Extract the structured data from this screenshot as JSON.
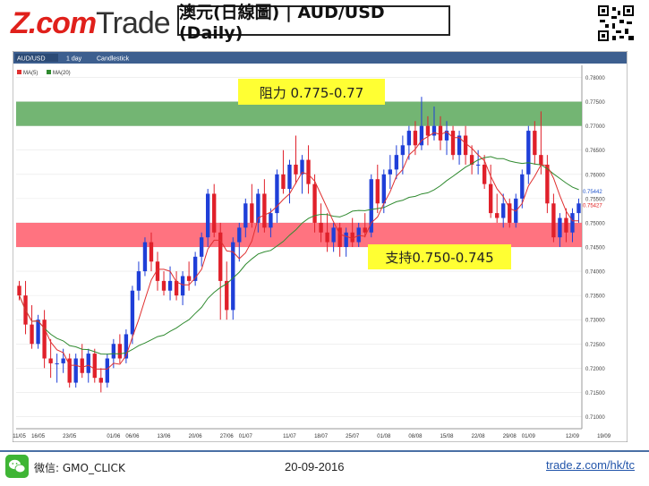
{
  "header": {
    "logo_z": "Z.com",
    "logo_trade": "Trade",
    "title": "澳元(日線圖) | AUD/USD  (Daily)"
  },
  "toolbar": {
    "symbol": "AUD/USD",
    "period": "1 day",
    "style": "Candlestick",
    "legend_ma5": "MA(5)",
    "legend_ma20": "MA(20)"
  },
  "annotations": {
    "resistance": "阻力 0.775-0.77",
    "support": "支持0.750-0.745"
  },
  "footer": {
    "wechat": "微信: GMO_CLICK",
    "date": "20-09-2016",
    "site": "trade.z.com/hk/tc"
  },
  "colors": {
    "up": "#1f3fd8",
    "down": "#e0202a",
    "ma5": "#e03030",
    "ma20": "#2f8a2f",
    "resistance_band": "#5aa85a",
    "support_band": "#ff5a6a",
    "label_bg": "#ffff33"
  },
  "chart_data": {
    "type": "candlestick",
    "ylim": [
      0.7075,
      0.7825
    ],
    "yticks": [
      "0.78000",
      "0.77500",
      "0.77000",
      "0.76500",
      "0.76000",
      "0.75500",
      "0.75000",
      "0.74500",
      "0.74000",
      "0.73500",
      "0.73000",
      "0.72500",
      "0.72000",
      "0.71500",
      "0.71000"
    ],
    "xticks": [
      "11/05",
      "16/05",
      "23/05",
      "01/06",
      "06/06",
      "13/06",
      "20/06",
      "27/06",
      "01/07",
      "11/07",
      "18/07",
      "25/07",
      "01/08",
      "08/08",
      "15/08",
      "22/08",
      "29/08",
      "01/09",
      "12/09",
      "19/09"
    ],
    "xtick_index": [
      0,
      3,
      8,
      15,
      18,
      23,
      28,
      33,
      36,
      43,
      48,
      53,
      58,
      63,
      68,
      73,
      78,
      81,
      88,
      93
    ],
    "bands": [
      {
        "from": 0.77,
        "to": 0.775,
        "label": "resistance"
      },
      {
        "from": 0.745,
        "to": 0.75,
        "label": "support"
      }
    ],
    "last_values": [
      "0.75442",
      "0.75427"
    ],
    "candles": [
      [
        0.737,
        0.738,
        0.734,
        0.735
      ],
      [
        0.735,
        0.738,
        0.727,
        0.729
      ],
      [
        0.729,
        0.733,
        0.724,
        0.725
      ],
      [
        0.725,
        0.731,
        0.724,
        0.73
      ],
      [
        0.73,
        0.732,
        0.72,
        0.722
      ],
      [
        0.722,
        0.726,
        0.718,
        0.721
      ],
      [
        0.721,
        0.723,
        0.717,
        0.721
      ],
      [
        0.721,
        0.724,
        0.719,
        0.722
      ],
      [
        0.722,
        0.723,
        0.716,
        0.717
      ],
      [
        0.717,
        0.723,
        0.716,
        0.722
      ],
      [
        0.722,
        0.725,
        0.718,
        0.719
      ],
      [
        0.719,
        0.724,
        0.717,
        0.723
      ],
      [
        0.723,
        0.724,
        0.717,
        0.718
      ],
      [
        0.718,
        0.72,
        0.715,
        0.717
      ],
      [
        0.717,
        0.723,
        0.716,
        0.722
      ],
      [
        0.722,
        0.726,
        0.72,
        0.725
      ],
      [
        0.725,
        0.727,
        0.721,
        0.722
      ],
      [
        0.722,
        0.728,
        0.721,
        0.727
      ],
      [
        0.727,
        0.737,
        0.725,
        0.736
      ],
      [
        0.736,
        0.742,
        0.734,
        0.74
      ],
      [
        0.74,
        0.747,
        0.739,
        0.746
      ],
      [
        0.746,
        0.748,
        0.74,
        0.742
      ],
      [
        0.742,
        0.744,
        0.736,
        0.738
      ],
      [
        0.738,
        0.74,
        0.735,
        0.736
      ],
      [
        0.736,
        0.741,
        0.734,
        0.738
      ],
      [
        0.738,
        0.74,
        0.734,
        0.735
      ],
      [
        0.735,
        0.74,
        0.733,
        0.739
      ],
      [
        0.739,
        0.742,
        0.736,
        0.738
      ],
      [
        0.738,
        0.744,
        0.737,
        0.743
      ],
      [
        0.743,
        0.748,
        0.741,
        0.747
      ],
      [
        0.747,
        0.757,
        0.745,
        0.756
      ],
      [
        0.756,
        0.758,
        0.747,
        0.748
      ],
      [
        0.748,
        0.75,
        0.73,
        0.738
      ],
      [
        0.738,
        0.742,
        0.73,
        0.732
      ],
      [
        0.732,
        0.747,
        0.73,
        0.746
      ],
      [
        0.746,
        0.75,
        0.742,
        0.749
      ],
      [
        0.749,
        0.755,
        0.747,
        0.754
      ],
      [
        0.754,
        0.758,
        0.749,
        0.75
      ],
      [
        0.75,
        0.757,
        0.748,
        0.756
      ],
      [
        0.756,
        0.759,
        0.748,
        0.749
      ],
      [
        0.749,
        0.753,
        0.747,
        0.752
      ],
      [
        0.752,
        0.761,
        0.75,
        0.76
      ],
      [
        0.76,
        0.765,
        0.756,
        0.757
      ],
      [
        0.757,
        0.763,
        0.754,
        0.762
      ],
      [
        0.762,
        0.768,
        0.758,
        0.76
      ],
      [
        0.76,
        0.764,
        0.756,
        0.763
      ],
      [
        0.763,
        0.766,
        0.756,
        0.758
      ],
      [
        0.758,
        0.76,
        0.748,
        0.75
      ],
      [
        0.75,
        0.754,
        0.746,
        0.748
      ],
      [
        0.748,
        0.752,
        0.744,
        0.746
      ],
      [
        0.746,
        0.75,
        0.744,
        0.749
      ],
      [
        0.749,
        0.75,
        0.743,
        0.745
      ],
      [
        0.745,
        0.749,
        0.743,
        0.748
      ],
      [
        0.748,
        0.751,
        0.745,
        0.746
      ],
      [
        0.746,
        0.75,
        0.745,
        0.749
      ],
      [
        0.749,
        0.752,
        0.747,
        0.748
      ],
      [
        0.748,
        0.76,
        0.747,
        0.759
      ],
      [
        0.759,
        0.762,
        0.752,
        0.754
      ],
      [
        0.754,
        0.761,
        0.752,
        0.76
      ],
      [
        0.76,
        0.764,
        0.757,
        0.761
      ],
      [
        0.761,
        0.766,
        0.759,
        0.764
      ],
      [
        0.764,
        0.768,
        0.76,
        0.766
      ],
      [
        0.766,
        0.77,
        0.763,
        0.769
      ],
      [
        0.769,
        0.771,
        0.764,
        0.766
      ],
      [
        0.766,
        0.776,
        0.765,
        0.77
      ],
      [
        0.77,
        0.772,
        0.766,
        0.768
      ],
      [
        0.768,
        0.774,
        0.767,
        0.77
      ],
      [
        0.77,
        0.772,
        0.765,
        0.767
      ],
      [
        0.767,
        0.771,
        0.764,
        0.769
      ],
      [
        0.769,
        0.77,
        0.763,
        0.764
      ],
      [
        0.764,
        0.769,
        0.762,
        0.768
      ],
      [
        0.768,
        0.77,
        0.762,
        0.764
      ],
      [
        0.764,
        0.766,
        0.76,
        0.762
      ],
      [
        0.762,
        0.765,
        0.76,
        0.762
      ],
      [
        0.762,
        0.764,
        0.757,
        0.758
      ],
      [
        0.758,
        0.762,
        0.751,
        0.752
      ],
      [
        0.752,
        0.756,
        0.75,
        0.751
      ],
      [
        0.751,
        0.756,
        0.749,
        0.754
      ],
      [
        0.754,
        0.755,
        0.749,
        0.75
      ],
      [
        0.75,
        0.756,
        0.749,
        0.755
      ],
      [
        0.755,
        0.761,
        0.753,
        0.76
      ],
      [
        0.76,
        0.77,
        0.758,
        0.769
      ],
      [
        0.769,
        0.771,
        0.762,
        0.764
      ],
      [
        0.764,
        0.773,
        0.76,
        0.762
      ],
      [
        0.762,
        0.764,
        0.752,
        0.754
      ],
      [
        0.754,
        0.756,
        0.746,
        0.747
      ],
      [
        0.747,
        0.752,
        0.745,
        0.751
      ],
      [
        0.751,
        0.753,
        0.746,
        0.748
      ],
      [
        0.748,
        0.753,
        0.746,
        0.752
      ],
      [
        0.752,
        0.755,
        0.75,
        0.754
      ]
    ]
  }
}
